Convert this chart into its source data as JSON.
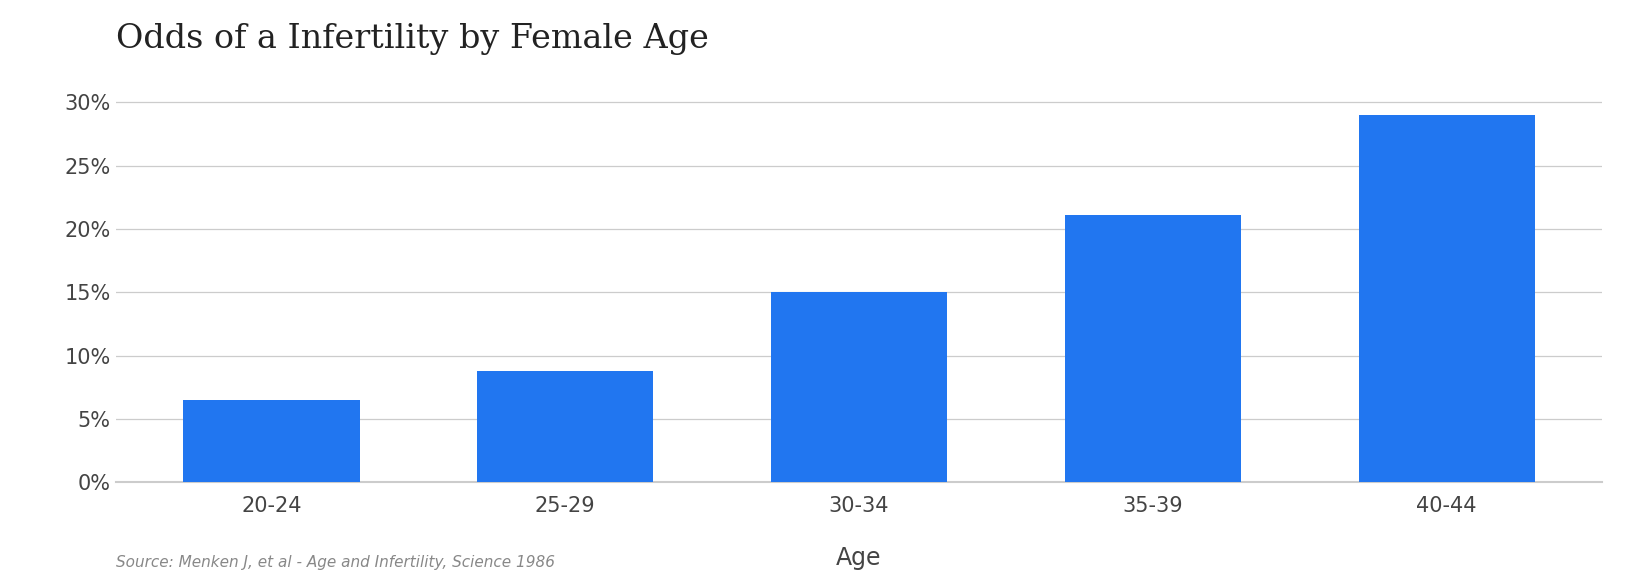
{
  "title": "Odds of a Infertility by Female Age",
  "categories": [
    "20-24",
    "25-29",
    "30-34",
    "35-39",
    "40-44"
  ],
  "values": [
    0.065,
    0.088,
    0.15,
    0.211,
    0.29
  ],
  "bar_color": "#2176f0",
  "xlabel": "Age",
  "ylabel": "",
  "ylim": [
    0,
    0.325
  ],
  "yticks": [
    0.0,
    0.05,
    0.1,
    0.15,
    0.2,
    0.25,
    0.3
  ],
  "ytick_labels": [
    "0%",
    "5%",
    "10%",
    "15%",
    "20%",
    "25%",
    "30%"
  ],
  "title_fontsize": 24,
  "tick_fontsize": 15,
  "xlabel_fontsize": 17,
  "source_text": "Source: Menken J, et al - Age and Infertility, Science 1986",
  "background_color": "#ffffff",
  "grid_color": "#cccccc",
  "bar_width": 0.6
}
